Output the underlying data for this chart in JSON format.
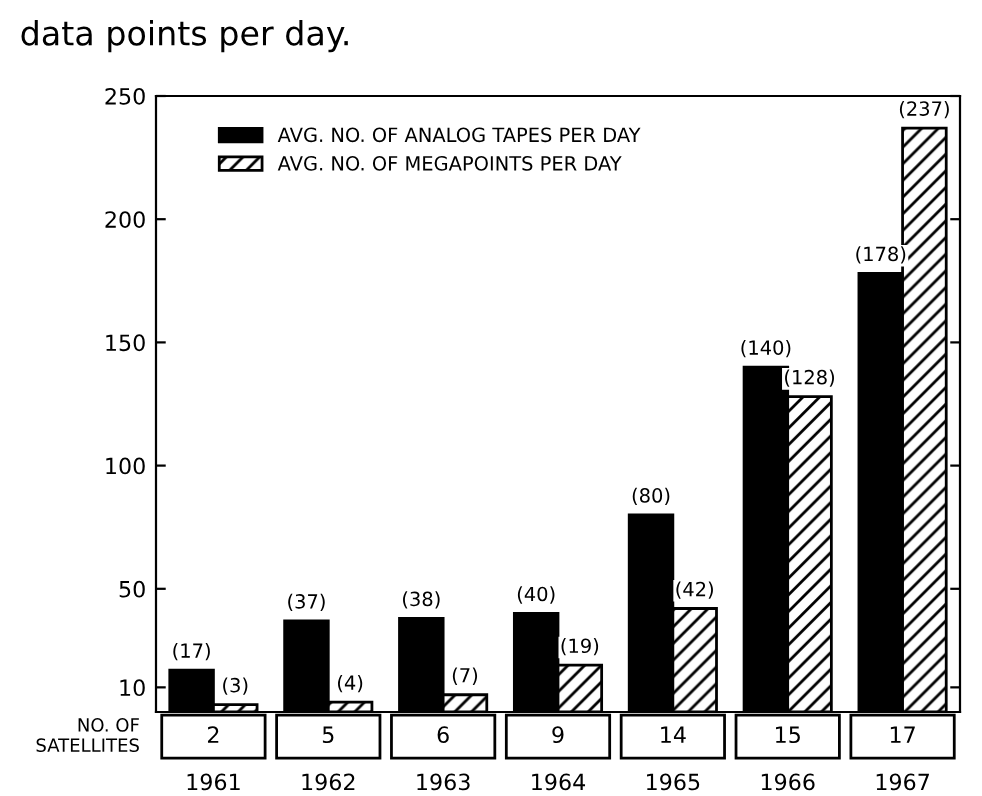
{
  "chart_data": {
    "type": "bar",
    "title": "data points per day.",
    "categories": [
      "1961",
      "1962",
      "1963",
      "1964",
      "1965",
      "1966",
      "1967"
    ],
    "series": [
      {
        "name": "AVG. NO. OF ANALOG TAPES PER DAY",
        "color": "#000000",
        "values": [
          17,
          37,
          38,
          40,
          80,
          140,
          178
        ],
        "value_labels": [
          "(17)",
          "(37)",
          "(38)",
          "(40)",
          "(80)",
          "(140)",
          "(178)"
        ]
      },
      {
        "name": "AVG. NO. OF MEGAPOINTS PER DAY",
        "color": "#000000",
        "values": [
          3,
          4,
          7,
          19,
          42,
          128,
          237
        ],
        "value_labels": [
          "(3)",
          "(4)",
          "(7)",
          "(19)",
          "(42)",
          "(128)",
          "(237)"
        ]
      }
    ],
    "ylim": [
      0,
      250
    ],
    "yticks": [
      10,
      50,
      100,
      150,
      200,
      250
    ],
    "grid": false,
    "legend": "top left",
    "annotations": [
      "NO. OF SATELLITES",
      "2",
      "5",
      "6",
      "9",
      "14",
      "15",
      "17"
    ]
  }
}
